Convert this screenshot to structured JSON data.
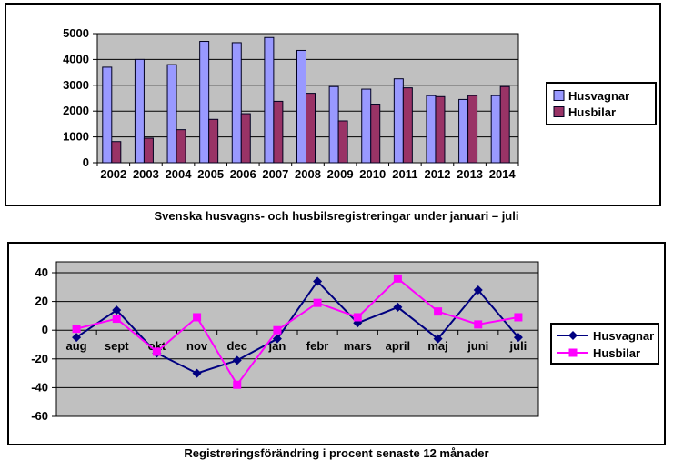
{
  "figure1": {
    "caption": "Svenska husvagns- och husbilsregistreringar under januari – juli"
  },
  "figure2": {
    "caption": "Registreringsförändring i procent senaste 12 månader"
  },
  "chart_data": [
    {
      "type": "bar",
      "title": "",
      "categories": [
        "2002",
        "2003",
        "2004",
        "2005",
        "2006",
        "2007",
        "2008",
        "2009",
        "2010",
        "2011",
        "2012",
        "2013",
        "2014"
      ],
      "series": [
        {
          "name": "Husvagnar",
          "color": "#9999FF",
          "values": [
            3700,
            4000,
            3800,
            4700,
            4650,
            4850,
            4350,
            2950,
            2850,
            3250,
            2600,
            2450,
            2600
          ]
        },
        {
          "name": "Husbilar",
          "color": "#993366",
          "values": [
            820,
            950,
            1280,
            1680,
            1900,
            2380,
            2690,
            1620,
            2270,
            2900,
            2560,
            2600,
            2950
          ]
        }
      ],
      "xlabel": "",
      "ylabel": "",
      "ylim": [
        0,
        5000
      ],
      "ytick": 1000,
      "grid": true,
      "plot_bg": "#C0C0C0",
      "grid_color": "#000000",
      "legend_position": "right"
    },
    {
      "type": "line",
      "title": "",
      "categories": [
        "aug",
        "sept",
        "okt",
        "nov",
        "dec",
        "jan",
        "febr",
        "mars",
        "april",
        "maj",
        "juni",
        "juli"
      ],
      "series": [
        {
          "name": "Husvagnar",
          "color": "#000080",
          "marker": "diamond",
          "values": [
            -5,
            14,
            -16,
            -30,
            -21,
            -6,
            34,
            5,
            16,
            -6,
            28,
            -5
          ]
        },
        {
          "name": "Husbilar",
          "color": "#FF00FF",
          "marker": "square",
          "values": [
            1,
            8,
            -15,
            9,
            -38,
            0,
            19,
            9,
            36,
            13,
            4,
            9
          ]
        }
      ],
      "xlabel": "",
      "ylabel": "",
      "ylim": [
        -60,
        40
      ],
      "ytick": 20,
      "grid": true,
      "plot_bg": "#C0C0C0",
      "grid_color": "#000000",
      "legend_position": "right"
    }
  ]
}
